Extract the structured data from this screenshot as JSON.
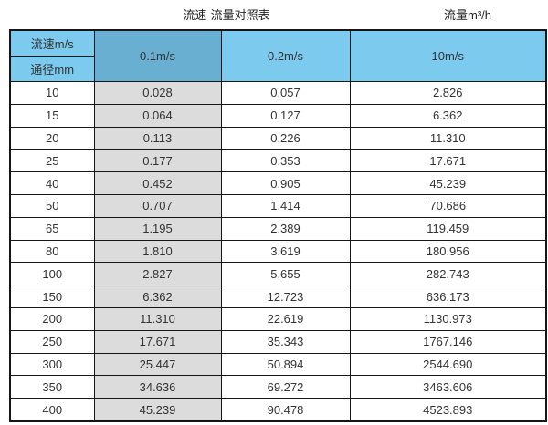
{
  "titles": {
    "main": "流速-流量对照表",
    "right_unit": "流量m³/h"
  },
  "table": {
    "corner": {
      "top": "流速m/s",
      "bottom": "通径mm"
    },
    "velocity_columns": [
      "0.1m/s",
      "0.2m/s",
      "10m/s"
    ],
    "rows": [
      {
        "diameter": "10",
        "values": [
          "0.028",
          "0.057",
          "2.826"
        ]
      },
      {
        "diameter": "15",
        "values": [
          "0.064",
          "0.127",
          "6.362"
        ]
      },
      {
        "diameter": "20",
        "values": [
          "0.113",
          "0.226",
          "11.310"
        ]
      },
      {
        "diameter": "25",
        "values": [
          "0.177",
          "0.353",
          "17.671"
        ]
      },
      {
        "diameter": "40",
        "values": [
          "0.452",
          "0.905",
          "45.239"
        ]
      },
      {
        "diameter": "50",
        "values": [
          "0.707",
          "1.414",
          "70.686"
        ]
      },
      {
        "diameter": "65",
        "values": [
          "1.195",
          "2.389",
          "119.459"
        ]
      },
      {
        "diameter": "80",
        "values": [
          "1.810",
          "3.619",
          "180.956"
        ]
      },
      {
        "diameter": "100",
        "values": [
          "2.827",
          "5.655",
          "282.743"
        ]
      },
      {
        "diameter": "150",
        "values": [
          "6.362",
          "12.723",
          "636.173"
        ]
      },
      {
        "diameter": "200",
        "values": [
          "11.310",
          "22.619",
          "1130.973"
        ]
      },
      {
        "diameter": "250",
        "values": [
          "17.671",
          "35.343",
          "1767.146"
        ]
      },
      {
        "diameter": "300",
        "values": [
          "25.447",
          "50.894",
          "2544.690"
        ]
      },
      {
        "diameter": "350",
        "values": [
          "34.636",
          "69.272",
          "3463.606"
        ]
      },
      {
        "diameter": "400",
        "values": [
          "45.239",
          "90.478",
          "4523.893"
        ]
      }
    ]
  },
  "colors": {
    "header_light_blue": "#7ccbef",
    "header_dark_blue": "#68afd2",
    "grey_column": "#dcdcdc",
    "border": "#161616"
  },
  "chart_data": {
    "type": "table",
    "title": "流速-流量对照表",
    "value_unit_label": "流量m³/h",
    "row_dimension": "通径mm",
    "column_dimension": "流速m/s",
    "diameters_mm": [
      10,
      15,
      20,
      25,
      40,
      50,
      65,
      80,
      100,
      150,
      200,
      250,
      300,
      350,
      400
    ],
    "series": [
      {
        "name": "0.1m/s",
        "values": [
          0.028,
          0.064,
          0.113,
          0.177,
          0.452,
          0.707,
          1.195,
          1.81,
          2.827,
          6.362,
          11.31,
          17.671,
          25.447,
          34.636,
          45.239
        ]
      },
      {
        "name": "0.2m/s",
        "values": [
          0.057,
          0.127,
          0.226,
          0.353,
          0.905,
          1.414,
          2.389,
          3.619,
          5.655,
          12.723,
          22.619,
          35.343,
          50.894,
          69.272,
          90.478
        ]
      },
      {
        "name": "10m/s",
        "values": [
          2.826,
          6.362,
          11.31,
          17.671,
          45.239,
          70.686,
          119.459,
          180.956,
          282.743,
          636.173,
          1130.973,
          1767.146,
          2544.69,
          3463.606,
          4523.893
        ]
      }
    ]
  }
}
